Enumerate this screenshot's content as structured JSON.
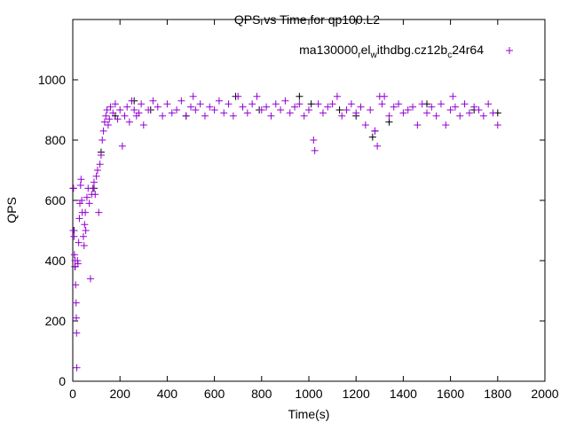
{
  "chart_data": {
    "type": "scatter",
    "title": "QPS vs Time for qp100.L2",
    "xlabel": "Time(s)",
    "ylabel": "QPS",
    "xlim": [
      0,
      2000
    ],
    "ylim": [
      0,
      1200
    ],
    "xticks": [
      0,
      200,
      400,
      600,
      800,
      1000,
      1200,
      1400,
      1600,
      1800,
      2000
    ],
    "yticks": [
      0,
      200,
      400,
      600,
      800,
      1000
    ],
    "grid": false,
    "legend": "top-right",
    "series": [
      {
        "name": "ma130000_rel_withdbg.cz12b_c24r64",
        "legend_main": "ma130000",
        "legend_parts": [
          [
            "rel",
            "sub"
          ],
          [
            "withdbg.cz12b",
            "sub-base"
          ],
          [
            "c",
            "sub"
          ],
          [
            "24r64",
            ""
          ]
        ],
        "color": "#9400d3",
        "points": [
          [
            2,
            500
          ],
          [
            3,
            640
          ],
          [
            5,
            480
          ],
          [
            7,
            420
          ],
          [
            9,
            380
          ],
          [
            10,
            400
          ],
          [
            12,
            320
          ],
          [
            14,
            260
          ],
          [
            15,
            210
          ],
          [
            16,
            160
          ],
          [
            17,
            45
          ],
          [
            20,
            400
          ],
          [
            22,
            390
          ],
          [
            25,
            460
          ],
          [
            28,
            540
          ],
          [
            30,
            590
          ],
          [
            33,
            650
          ],
          [
            35,
            670
          ],
          [
            38,
            600
          ],
          [
            40,
            560
          ],
          [
            45,
            480
          ],
          [
            48,
            450
          ],
          [
            50,
            520
          ],
          [
            53,
            560
          ],
          [
            55,
            500
          ],
          [
            60,
            610
          ],
          [
            65,
            640
          ],
          [
            70,
            590
          ],
          [
            75,
            340
          ],
          [
            80,
            620
          ],
          [
            85,
            640
          ],
          [
            90,
            660
          ],
          [
            95,
            620
          ],
          [
            100,
            680
          ],
          [
            105,
            700
          ],
          [
            110,
            560
          ],
          [
            115,
            720
          ],
          [
            120,
            750
          ],
          [
            125,
            800
          ],
          [
            130,
            830
          ],
          [
            135,
            860
          ],
          [
            140,
            880
          ],
          [
            145,
            900
          ],
          [
            150,
            850
          ],
          [
            155,
            870
          ],
          [
            160,
            910
          ],
          [
            170,
            890
          ],
          [
            180,
            920
          ],
          [
            190,
            870
          ],
          [
            200,
            900
          ],
          [
            210,
            780
          ],
          [
            220,
            880
          ],
          [
            230,
            910
          ],
          [
            240,
            860
          ],
          [
            250,
            930
          ],
          [
            260,
            900
          ],
          [
            270,
            880
          ],
          [
            280,
            890
          ],
          [
            290,
            920
          ],
          [
            300,
            850
          ],
          [
            320,
            900
          ],
          [
            340,
            930
          ],
          [
            360,
            910
          ],
          [
            380,
            880
          ],
          [
            400,
            920
          ],
          [
            420,
            890
          ],
          [
            440,
            900
          ],
          [
            460,
            930
          ],
          [
            480,
            880
          ],
          [
            500,
            910
          ],
          [
            510,
            945
          ],
          [
            520,
            900
          ],
          [
            540,
            920
          ],
          [
            560,
            880
          ],
          [
            580,
            910
          ],
          [
            600,
            900
          ],
          [
            620,
            930
          ],
          [
            640,
            890
          ],
          [
            660,
            920
          ],
          [
            680,
            880
          ],
          [
            700,
            945
          ],
          [
            720,
            910
          ],
          [
            740,
            890
          ],
          [
            760,
            920
          ],
          [
            780,
            945
          ],
          [
            800,
            900
          ],
          [
            820,
            910
          ],
          [
            840,
            880
          ],
          [
            860,
            920
          ],
          [
            880,
            900
          ],
          [
            900,
            930
          ],
          [
            920,
            890
          ],
          [
            940,
            910
          ],
          [
            960,
            920
          ],
          [
            980,
            880
          ],
          [
            1000,
            900
          ],
          [
            1020,
            800
          ],
          [
            1025,
            765
          ],
          [
            1040,
            920
          ],
          [
            1060,
            890
          ],
          [
            1080,
            910
          ],
          [
            1100,
            920
          ],
          [
            1120,
            945
          ],
          [
            1140,
            880
          ],
          [
            1160,
            900
          ],
          [
            1180,
            920
          ],
          [
            1200,
            890
          ],
          [
            1220,
            910
          ],
          [
            1240,
            850
          ],
          [
            1260,
            900
          ],
          [
            1280,
            830
          ],
          [
            1290,
            780
          ],
          [
            1300,
            945
          ],
          [
            1310,
            920
          ],
          [
            1320,
            945
          ],
          [
            1340,
            880
          ],
          [
            1360,
            910
          ],
          [
            1380,
            920
          ],
          [
            1400,
            890
          ],
          [
            1420,
            900
          ],
          [
            1440,
            910
          ],
          [
            1460,
            850
          ],
          [
            1480,
            920
          ],
          [
            1500,
            890
          ],
          [
            1520,
            910
          ],
          [
            1540,
            880
          ],
          [
            1560,
            920
          ],
          [
            1580,
            850
          ],
          [
            1600,
            900
          ],
          [
            1610,
            945
          ],
          [
            1620,
            910
          ],
          [
            1640,
            880
          ],
          [
            1660,
            920
          ],
          [
            1680,
            890
          ],
          [
            1700,
            910
          ],
          [
            1720,
            900
          ],
          [
            1740,
            880
          ],
          [
            1760,
            920
          ],
          [
            1780,
            890
          ],
          [
            1800,
            850
          ]
        ]
      },
      {
        "name": "",
        "color": "#000000",
        "points": [
          [
            2,
            640
          ],
          [
            5,
            500
          ],
          [
            10,
            380
          ],
          [
            90,
            640
          ],
          [
            120,
            760
          ],
          [
            180,
            880
          ],
          [
            260,
            930
          ],
          [
            330,
            900
          ],
          [
            480,
            880
          ],
          [
            690,
            945
          ],
          [
            790,
            900
          ],
          [
            960,
            945
          ],
          [
            1010,
            920
          ],
          [
            1130,
            900
          ],
          [
            1200,
            880
          ],
          [
            1270,
            810
          ],
          [
            1280,
            830
          ],
          [
            1340,
            860
          ],
          [
            1500,
            920
          ],
          [
            1700,
            900
          ],
          [
            1800,
            890
          ]
        ]
      }
    ]
  }
}
